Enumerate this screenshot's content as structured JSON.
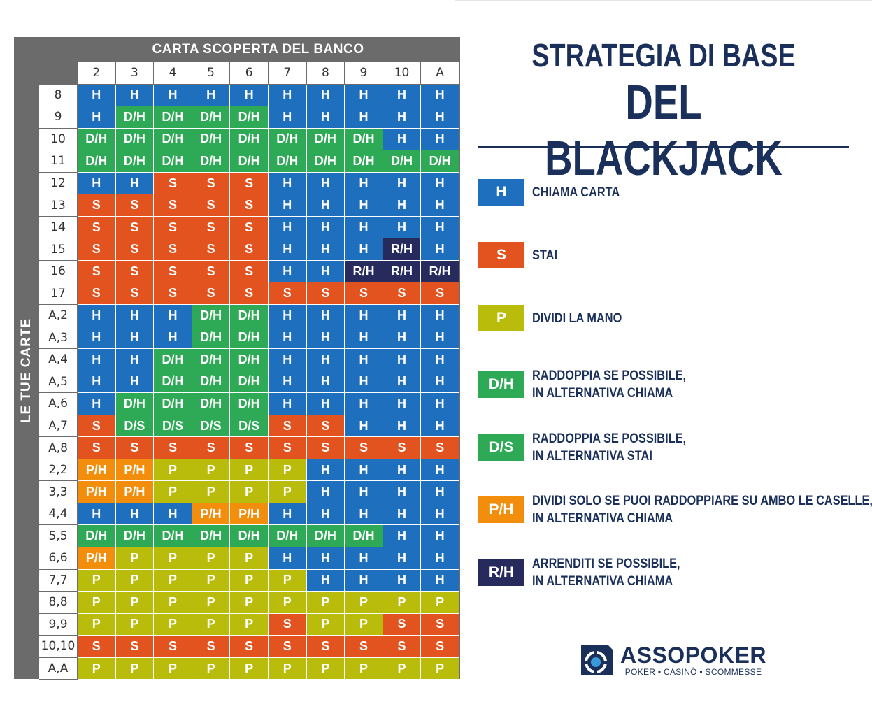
{
  "title": {
    "line1": "STRATEGIA DI BASE",
    "line2": "DEL BLACKJACK"
  },
  "table": {
    "dealer_label": "CARTA SCOPERTA DEL BANCO",
    "player_label": "LE TUE CARTE",
    "dealer_cards": [
      "2",
      "3",
      "4",
      "5",
      "6",
      "7",
      "8",
      "9",
      "10",
      "A"
    ],
    "rows": [
      {
        "hand": "8",
        "actions": [
          "H",
          "H",
          "H",
          "H",
          "H",
          "H",
          "H",
          "H",
          "H",
          "H"
        ]
      },
      {
        "hand": "9",
        "actions": [
          "H",
          "D/H",
          "D/H",
          "D/H",
          "D/H",
          "H",
          "H",
          "H",
          "H",
          "H"
        ]
      },
      {
        "hand": "10",
        "actions": [
          "D/H",
          "D/H",
          "D/H",
          "D/H",
          "D/H",
          "D/H",
          "D/H",
          "D/H",
          "H",
          "H"
        ]
      },
      {
        "hand": "11",
        "actions": [
          "D/H",
          "D/H",
          "D/H",
          "D/H",
          "D/H",
          "D/H",
          "D/H",
          "D/H",
          "D/H",
          "D/H"
        ]
      },
      {
        "hand": "12",
        "actions": [
          "H",
          "H",
          "S",
          "S",
          "S",
          "H",
          "H",
          "H",
          "H",
          "H"
        ]
      },
      {
        "hand": "13",
        "actions": [
          "S",
          "S",
          "S",
          "S",
          "S",
          "H",
          "H",
          "H",
          "H",
          "H"
        ]
      },
      {
        "hand": "14",
        "actions": [
          "S",
          "S",
          "S",
          "S",
          "S",
          "H",
          "H",
          "H",
          "H",
          "H"
        ]
      },
      {
        "hand": "15",
        "actions": [
          "S",
          "S",
          "S",
          "S",
          "S",
          "H",
          "H",
          "H",
          "R/H",
          "H"
        ]
      },
      {
        "hand": "16",
        "actions": [
          "S",
          "S",
          "S",
          "S",
          "S",
          "H",
          "H",
          "R/H",
          "R/H",
          "R/H"
        ]
      },
      {
        "hand": "17",
        "actions": [
          "S",
          "S",
          "S",
          "S",
          "S",
          "S",
          "S",
          "S",
          "S",
          "S"
        ]
      },
      {
        "hand": "A,2",
        "actions": [
          "H",
          "H",
          "H",
          "D/H",
          "D/H",
          "H",
          "H",
          "H",
          "H",
          "H"
        ]
      },
      {
        "hand": "A,3",
        "actions": [
          "H",
          "H",
          "H",
          "D/H",
          "D/H",
          "H",
          "H",
          "H",
          "H",
          "H"
        ]
      },
      {
        "hand": "A,4",
        "actions": [
          "H",
          "H",
          "D/H",
          "D/H",
          "D/H",
          "H",
          "H",
          "H",
          "H",
          "H"
        ]
      },
      {
        "hand": "A,5",
        "actions": [
          "H",
          "H",
          "D/H",
          "D/H",
          "D/H",
          "H",
          "H",
          "H",
          "H",
          "H"
        ]
      },
      {
        "hand": "A,6",
        "actions": [
          "H",
          "D/H",
          "D/H",
          "D/H",
          "D/H",
          "H",
          "H",
          "H",
          "H",
          "H"
        ]
      },
      {
        "hand": "A,7",
        "actions": [
          "S",
          "D/S",
          "D/S",
          "D/S",
          "D/S",
          "S",
          "S",
          "H",
          "H",
          "H"
        ]
      },
      {
        "hand": "A,8",
        "actions": [
          "S",
          "S",
          "S",
          "S",
          "S",
          "S",
          "S",
          "S",
          "S",
          "S"
        ]
      },
      {
        "hand": "2,2",
        "actions": [
          "P/H",
          "P/H",
          "P",
          "P",
          "P",
          "P",
          "H",
          "H",
          "H",
          "H"
        ]
      },
      {
        "hand": "3,3",
        "actions": [
          "P/H",
          "P/H",
          "P",
          "P",
          "P",
          "P",
          "H",
          "H",
          "H",
          "H"
        ]
      },
      {
        "hand": "4,4",
        "actions": [
          "H",
          "H",
          "H",
          "P/H",
          "P/H",
          "H",
          "H",
          "H",
          "H",
          "H"
        ]
      },
      {
        "hand": "5,5",
        "actions": [
          "D/H",
          "D/H",
          "D/H",
          "D/H",
          "D/H",
          "D/H",
          "D/H",
          "D/H",
          "H",
          "H"
        ]
      },
      {
        "hand": "6,6",
        "actions": [
          "P/H",
          "P",
          "P",
          "P",
          "P",
          "H",
          "H",
          "H",
          "H",
          "H"
        ]
      },
      {
        "hand": "7,7",
        "actions": [
          "P",
          "P",
          "P",
          "P",
          "P",
          "P",
          "H",
          "H",
          "H",
          "H"
        ]
      },
      {
        "hand": "8,8",
        "actions": [
          "P",
          "P",
          "P",
          "P",
          "P",
          "P",
          "P",
          "P",
          "P",
          "P"
        ]
      },
      {
        "hand": "9,9",
        "actions": [
          "P",
          "P",
          "P",
          "P",
          "P",
          "S",
          "P",
          "P",
          "S",
          "S"
        ]
      },
      {
        "hand": "10,10",
        "actions": [
          "S",
          "S",
          "S",
          "S",
          "S",
          "S",
          "S",
          "S",
          "S",
          "S"
        ]
      },
      {
        "hand": "A,A",
        "actions": [
          "P",
          "P",
          "P",
          "P",
          "P",
          "P",
          "P",
          "P",
          "P",
          "P"
        ]
      }
    ]
  },
  "colors": {
    "H": "#1f6fbf",
    "S": "#e2531f",
    "P": "#b9bc0a",
    "D/H": "#2ea956",
    "D/S": "#2ea956",
    "P/H": "#f28e0c",
    "R/H": "#262a5c",
    "navy": "#1a2f5a"
  },
  "legend": [
    {
      "code": "H",
      "lines": [
        "CHIAMA CARTA"
      ]
    },
    {
      "code": "S",
      "lines": [
        "STAI"
      ]
    },
    {
      "code": "P",
      "lines": [
        "DIVIDI LA MANO"
      ]
    },
    {
      "code": "D/H",
      "lines": [
        "RADDOPPIA SE POSSIBILE,",
        "IN ALTERNATIVA CHIAMA"
      ]
    },
    {
      "code": "D/S",
      "lines": [
        "RADDOPPIA SE POSSIBILE,",
        "IN ALTERNATIVA STAI"
      ]
    },
    {
      "code": "P/H",
      "lines": [
        "DIVIDI SOLO SE PUOI RADDOPPIARE SU AMBO LE CASELLE,",
        "IN ALTERNATIVA CHIAMA"
      ]
    },
    {
      "code": "R/H",
      "lines": [
        "ARRENDITI SE POSSIBILE,",
        "IN ALTERNATIVA CHIAMA"
      ]
    }
  ],
  "logo": {
    "name": "ASSOPOKER",
    "tagline": "POKER • CASINÒ • SCOMMESSE",
    "icon": "poker-chip-icon"
  }
}
